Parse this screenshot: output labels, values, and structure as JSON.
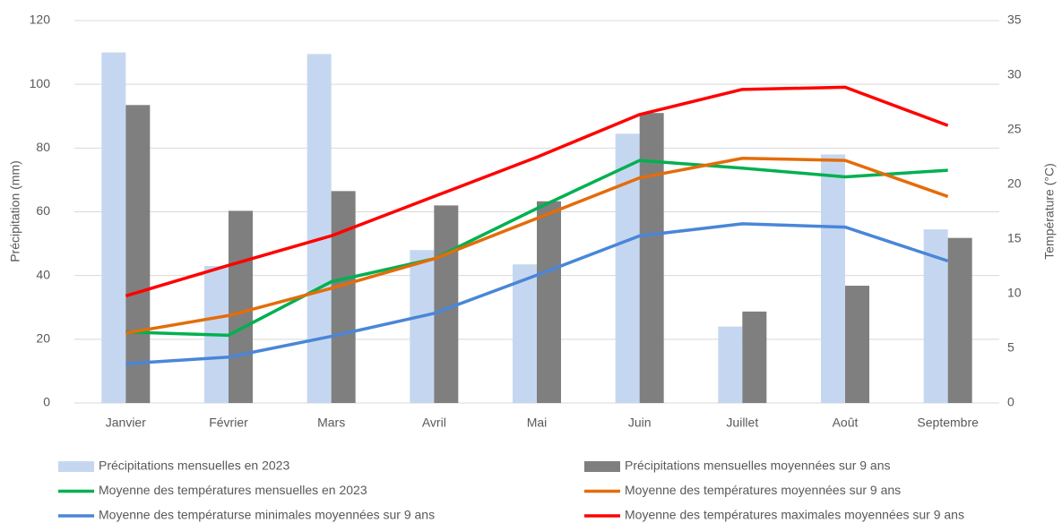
{
  "chart_data": {
    "type": "bar-line",
    "categories": [
      "Janvier",
      "Février",
      "Mars",
      "Avril",
      "Mai",
      "Juin",
      "Juillet",
      "Août",
      "Septembre"
    ],
    "ylabel": "Précipitation (mm)",
    "y2label": "Température (°C)",
    "ylim": [
      0,
      120
    ],
    "yticks": [
      0,
      20,
      40,
      60,
      80,
      100,
      120
    ],
    "y2lim": [
      0,
      35
    ],
    "y2ticks": [
      0,
      5,
      10,
      15,
      20,
      25,
      30,
      35
    ],
    "grid": true,
    "legend": "bottom",
    "series": [
      {
        "name": "Précipitations mensuelles en 2023",
        "type": "bar",
        "color": "#c5d7f0",
        "values": [
          110,
          43,
          109.5,
          48,
          43.5,
          84.5,
          24,
          78,
          54.5
        ]
      },
      {
        "name": "Précipitations mensuelles moyennées sur 9 ans",
        "type": "bar",
        "color": "#7f7f7f",
        "values": [
          93.5,
          60.3,
          66.5,
          62,
          63.3,
          91,
          28.7,
          36.8,
          51.8
        ]
      },
      {
        "name": "Moyenne des températures mensuelles en 2023",
        "type": "line",
        "axis": "y2",
        "color": "#00b050",
        "values": [
          6.5,
          6.2,
          11.1,
          13.2,
          17.8,
          22.2,
          21.5,
          20.7,
          21.3
        ]
      },
      {
        "name": "Moyenne des températures moyennées sur 9 ans",
        "type": "line",
        "axis": "y2",
        "color": "#e46c0a",
        "values": [
          6.4,
          8.0,
          10.5,
          13.2,
          16.9,
          20.6,
          22.4,
          22.2,
          18.9
        ]
      },
      {
        "name": "Moyenne des températurse minimales moyennées sur 9 ans",
        "type": "line",
        "axis": "y2",
        "color": "#4a86d8",
        "values": [
          3.6,
          4.2,
          6.1,
          8.2,
          11.7,
          15.3,
          16.4,
          16.1,
          13.0
        ]
      },
      {
        "name": "Moyenne des températures maximales moyennées sur 9 ans",
        "type": "line",
        "axis": "y2",
        "color": "#ff0000",
        "values": [
          9.8,
          12.6,
          15.3,
          18.9,
          22.5,
          26.4,
          28.7,
          28.9,
          25.4
        ]
      }
    ]
  }
}
